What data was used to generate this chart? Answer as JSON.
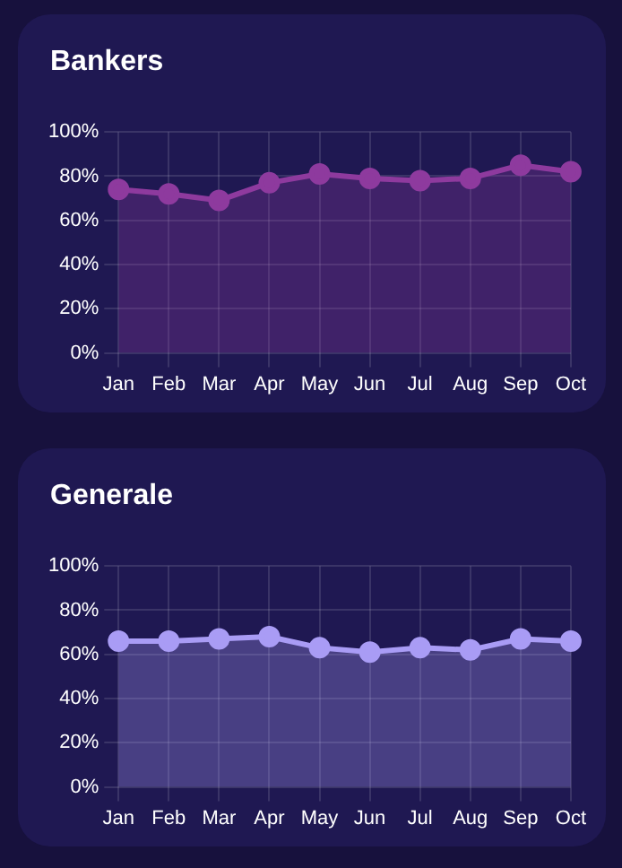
{
  "chart_data": [
    {
      "type": "area",
      "title": "Bankers",
      "categories": [
        "Jan",
        "Feb",
        "Mar",
        "Apr",
        "May",
        "Jun",
        "Jul",
        "Aug",
        "Sep",
        "Oct"
      ],
      "series": [
        {
          "color": "#8e3a9e",
          "values": [
            74,
            72,
            69,
            77,
            81,
            79,
            78,
            79,
            85,
            82
          ]
        }
      ],
      "ylim": [
        0,
        100
      ],
      "yticks": [
        {
          "value": 0,
          "label": "0%"
        },
        {
          "value": 20,
          "label": "20%"
        },
        {
          "value": 40,
          "label": "40%"
        },
        {
          "value": 60,
          "label": "60%"
        },
        {
          "value": 80,
          "label": "80%"
        },
        {
          "value": 100,
          "label": "100%"
        }
      ],
      "grid": true,
      "legend": false,
      "marker": "circle"
    },
    {
      "type": "area",
      "title": "Generale",
      "categories": [
        "Jan",
        "Feb",
        "Mar",
        "Apr",
        "May",
        "Jun",
        "Jul",
        "Aug",
        "Sep",
        "Oct"
      ],
      "series": [
        {
          "color": "#a99cf5",
          "values": [
            66,
            66,
            67,
            68,
            63,
            61,
            63,
            62,
            67,
            66
          ]
        }
      ],
      "ylim": [
        0,
        100
      ],
      "yticks": [
        {
          "value": 0,
          "label": "0%"
        },
        {
          "value": 20,
          "label": "20%"
        },
        {
          "value": 40,
          "label": "40%"
        },
        {
          "value": 60,
          "label": "60%"
        },
        {
          "value": 80,
          "label": "80%"
        },
        {
          "value": 100,
          "label": "100%"
        }
      ],
      "grid": true,
      "legend": false,
      "marker": "circle"
    }
  ]
}
